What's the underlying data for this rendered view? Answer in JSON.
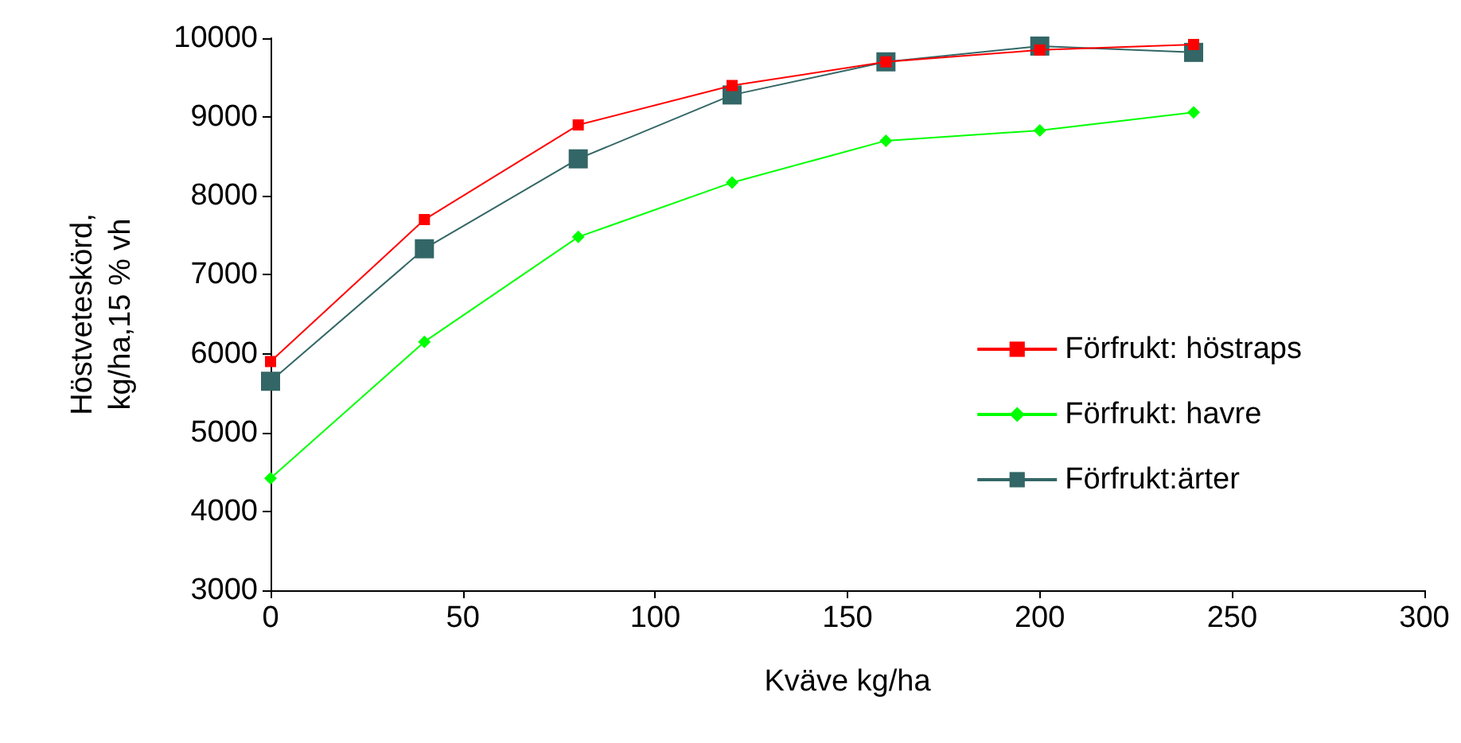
{
  "chart_data": {
    "type": "line",
    "xlabel": "Kväve kg/ha",
    "ylabel": "Höstveteskörd,\nkg/ha,15 % vh",
    "x": [
      0,
      40,
      80,
      120,
      160,
      200,
      240
    ],
    "series": [
      {
        "name": "Förfrukt: höstraps",
        "color": "#ff0000",
        "marker": "square",
        "values": [
          5900,
          7700,
          8900,
          9400,
          9700,
          9850,
          9920
        ]
      },
      {
        "name": "Förfrukt: havre",
        "color": "#00ff00",
        "marker": "diamond",
        "values": [
          4420,
          6150,
          7480,
          8170,
          8700,
          8830,
          9060
        ]
      },
      {
        "name": "Förfrukt:ärter",
        "color": "#336666",
        "marker": "square",
        "values": [
          5650,
          7330,
          8470,
          9280,
          9700,
          9900,
          9820
        ]
      }
    ],
    "xlim": [
      0,
      300
    ],
    "xticks": [
      0,
      50,
      100,
      150,
      200,
      250,
      300
    ],
    "ylim": [
      3000,
      10000
    ],
    "yticks": [
      3000,
      4000,
      5000,
      6000,
      7000,
      8000,
      9000,
      10000
    ],
    "grid": false,
    "legend": "right",
    "line_style": "solid"
  }
}
